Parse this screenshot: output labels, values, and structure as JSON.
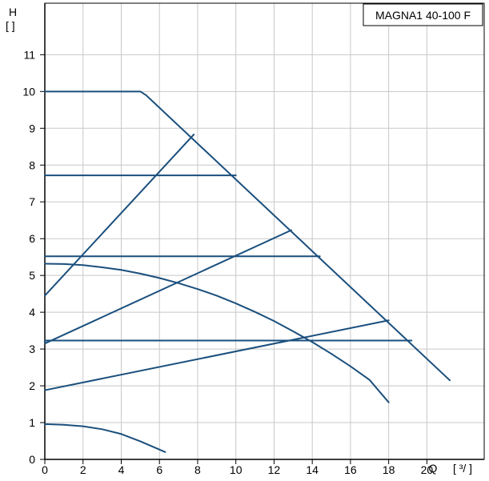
{
  "chart_data": {
    "type": "line",
    "legend_label": "MAGNA1 40-100 F",
    "legend_position": "top-right",
    "y_axis_symbol": "H",
    "y_axis_unit": "[ ]",
    "x_axis_symbol": "Q",
    "x_axis_unit": "[ ³/ ]",
    "xlim": [
      0,
      23
    ],
    "ylim": [
      0,
      12.4
    ],
    "x_ticks": [
      0,
      2,
      4,
      6,
      8,
      10,
      12,
      14,
      16,
      18,
      20
    ],
    "y_ticks": [
      0,
      1,
      2,
      3,
      4,
      5,
      6,
      7,
      8,
      9,
      10,
      11
    ],
    "grid": true,
    "line_color": "#1a4f7d",
    "series": [
      {
        "x": [
          0,
          5,
          5.3,
          21.2
        ],
        "y": [
          10,
          10,
          9.9,
          2.15
        ]
      },
      {
        "x": [
          0,
          10.0
        ],
        "y": [
          7.72,
          7.72
        ]
      },
      {
        "x": [
          0,
          14.4
        ],
        "y": [
          5.52,
          5.52
        ]
      },
      {
        "x": [
          0,
          19.2
        ],
        "y": [
          3.23,
          3.23
        ]
      },
      {
        "x": [
          0,
          7.8
        ],
        "y": [
          4.45,
          8.83
        ]
      },
      {
        "x": [
          0,
          12.9
        ],
        "y": [
          3.15,
          6.23
        ]
      },
      {
        "x": [
          0,
          18.0
        ],
        "y": [
          1.88,
          3.78
        ]
      },
      {
        "x": [
          0,
          1,
          2,
          3,
          4,
          5,
          6,
          7,
          8,
          9,
          10,
          11,
          12,
          13,
          14,
          15,
          16,
          17,
          18.0
        ],
        "y": [
          5.32,
          5.31,
          5.28,
          5.22,
          5.15,
          5.05,
          4.93,
          4.79,
          4.63,
          4.45,
          4.24,
          4.01,
          3.76,
          3.48,
          3.19,
          2.87,
          2.53,
          2.16,
          1.55
        ]
      },
      {
        "x": [
          0,
          1,
          2,
          3,
          4,
          5,
          6.3
        ],
        "y": [
          0.96,
          0.94,
          0.9,
          0.82,
          0.69,
          0.49,
          0.2
        ]
      }
    ]
  }
}
